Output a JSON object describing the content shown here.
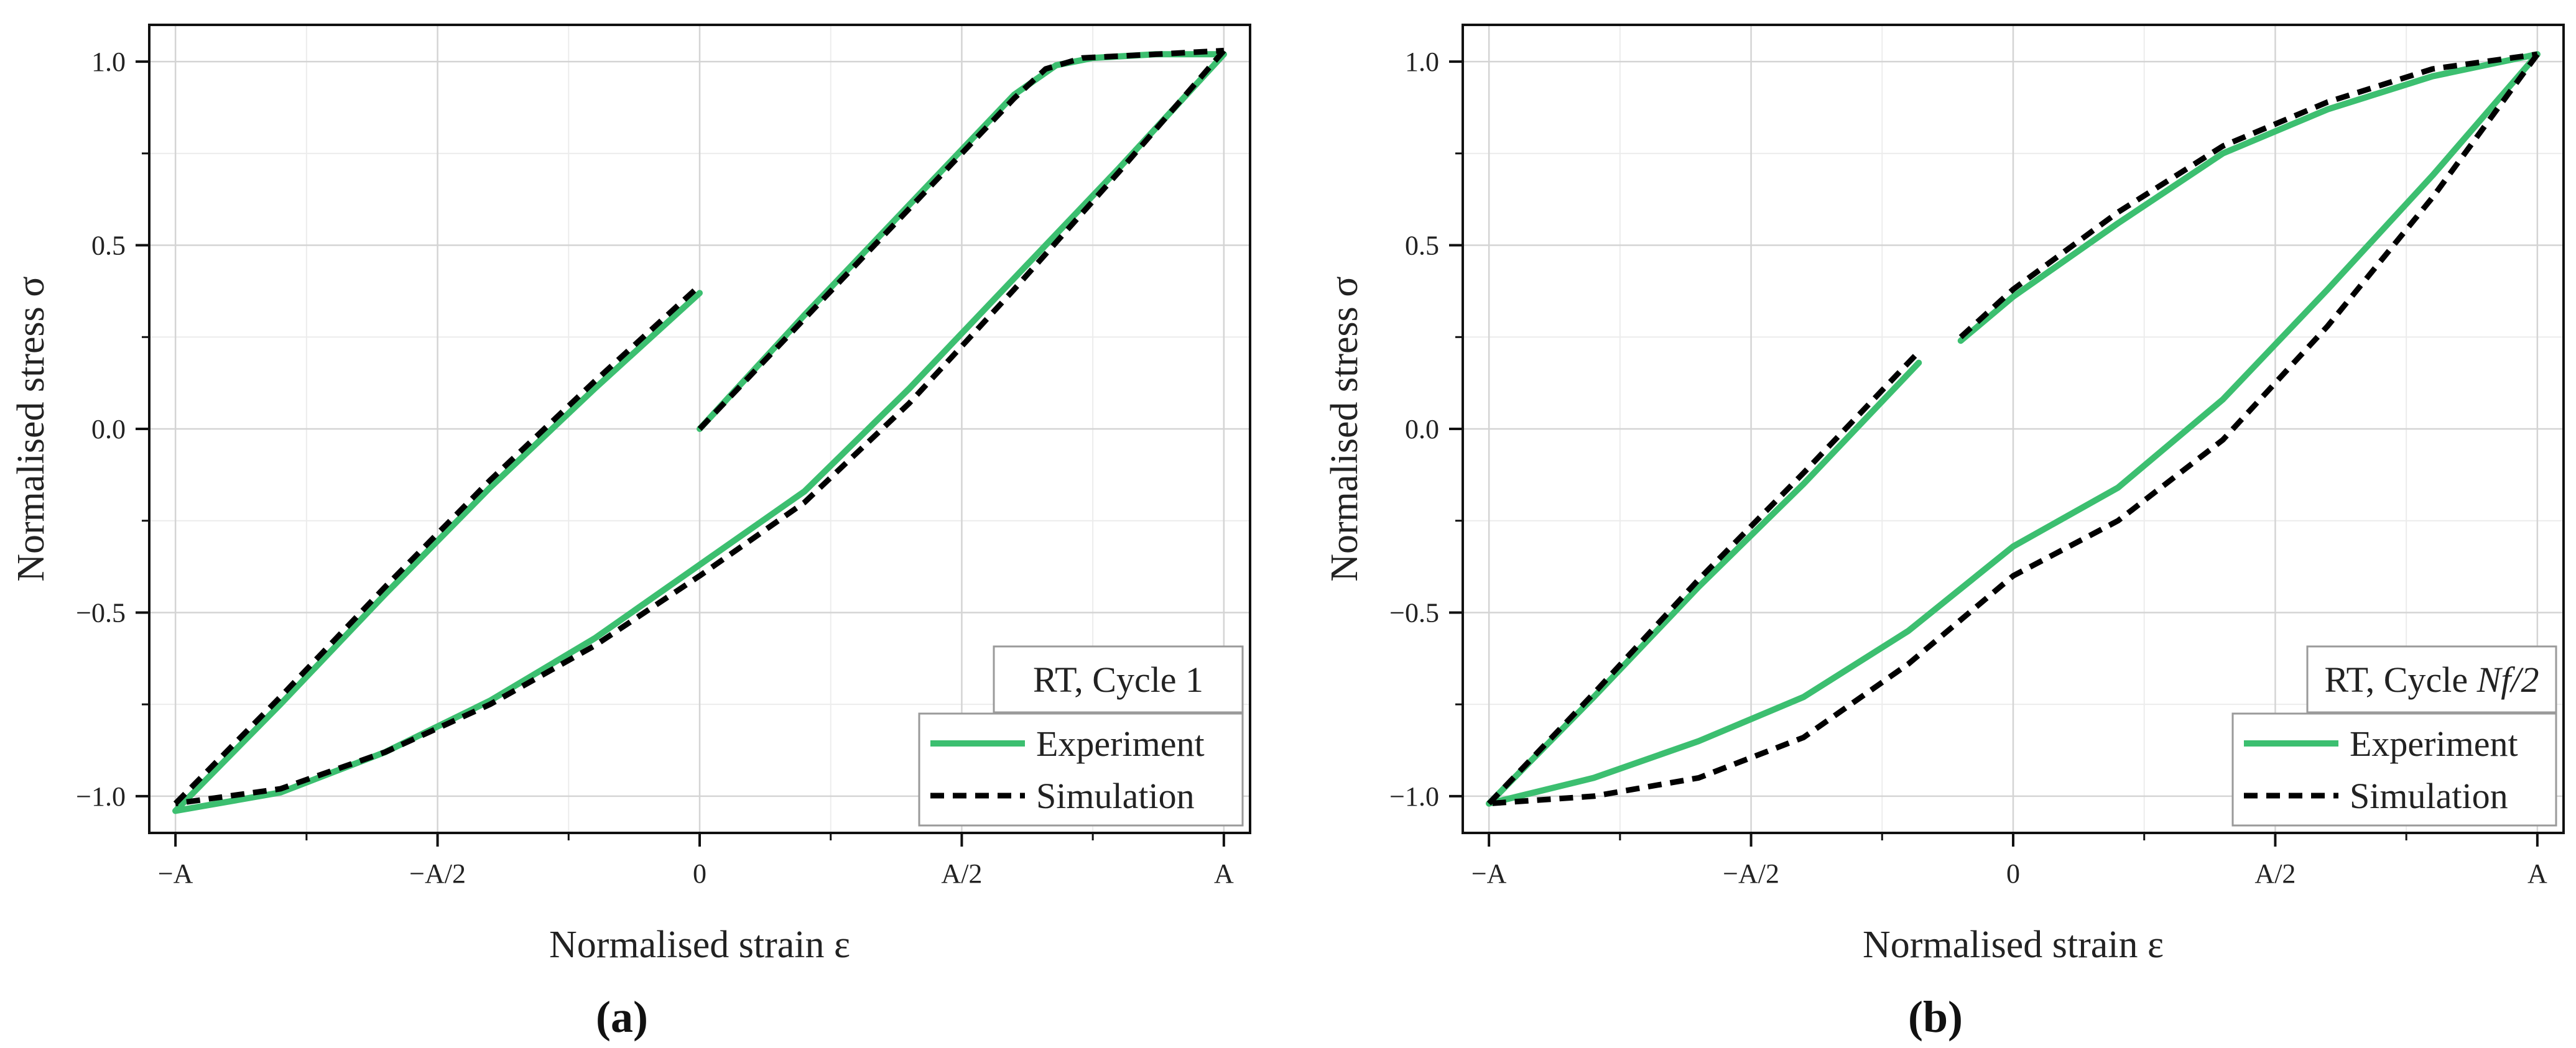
{
  "chart_data": [
    {
      "type": "line",
      "panel_label": "(a)",
      "tag": {
        "text": "RT, Cycle 1",
        "sub": ""
      },
      "xlabel": "Normalised strain ε",
      "ylabel": "Normalised stress σ",
      "xlim": [
        -1.05,
        1.05
      ],
      "ylim": [
        -1.1,
        1.1
      ],
      "x_ticks": [
        -1,
        -0.5,
        0,
        0.5,
        1
      ],
      "x_tick_labels": [
        "−A",
        "−A/2",
        "0",
        "A/2",
        "A"
      ],
      "y_ticks": [
        -1.0,
        -0.5,
        0.0,
        0.5,
        1.0
      ],
      "y_tick_labels": [
        "−1.0",
        "−0.5",
        "0.0",
        "0.5",
        "1.0"
      ],
      "grid": true,
      "legend_position": "bottom-right",
      "series": [
        {
          "name": "Experiment",
          "color": "#3cbf70",
          "style": "solid",
          "segments": [
            [
              [
                0,
                0
              ],
              [
                0.2,
                0.31
              ],
              [
                0.4,
                0.61
              ],
              [
                0.6,
                0.91
              ],
              [
                0.68,
                0.99
              ],
              [
                0.75,
                1.01
              ],
              [
                0.87,
                1.02
              ],
              [
                1.0,
                1.02
              ]
            ],
            [
              [
                1.0,
                1.02
              ],
              [
                0.8,
                0.71
              ],
              [
                0.6,
                0.41
              ],
              [
                0.4,
                0.11
              ],
              [
                0.2,
                -0.17
              ],
              [
                0.0,
                -0.37
              ],
              [
                -0.2,
                -0.57
              ],
              [
                -0.4,
                -0.74
              ],
              [
                -0.6,
                -0.88
              ],
              [
                -0.8,
                -0.99
              ],
              [
                -1.0,
                -1.04
              ]
            ],
            [
              [
                -1.0,
                -1.04
              ],
              [
                -0.8,
                -0.75
              ],
              [
                -0.6,
                -0.45
              ],
              [
                -0.4,
                -0.16
              ],
              [
                -0.2,
                0.11
              ],
              [
                0.0,
                0.37
              ]
            ]
          ]
        },
        {
          "name": "Simulation",
          "color": "#000000",
          "style": "dashed",
          "segments": [
            [
              [
                0,
                0
              ],
              [
                0.2,
                0.3
              ],
              [
                0.4,
                0.6
              ],
              [
                0.6,
                0.9
              ],
              [
                0.66,
                0.98
              ],
              [
                0.73,
                1.01
              ],
              [
                0.87,
                1.02
              ],
              [
                1.0,
                1.03
              ]
            ],
            [
              [
                1.0,
                1.03
              ],
              [
                0.8,
                0.7
              ],
              [
                0.6,
                0.38
              ],
              [
                0.4,
                0.07
              ],
              [
                0.2,
                -0.2
              ],
              [
                0.0,
                -0.4
              ],
              [
                -0.2,
                -0.59
              ],
              [
                -0.4,
                -0.75
              ],
              [
                -0.6,
                -0.88
              ],
              [
                -0.8,
                -0.98
              ],
              [
                -1.0,
                -1.02
              ]
            ],
            [
              [
                -1.0,
                -1.02
              ],
              [
                -0.8,
                -0.73
              ],
              [
                -0.6,
                -0.43
              ],
              [
                -0.4,
                -0.14
              ],
              [
                -0.2,
                0.13
              ],
              [
                0.0,
                0.39
              ]
            ]
          ]
        }
      ]
    },
    {
      "type": "line",
      "panel_label": "(b)",
      "tag": {
        "text": "RT, Cycle ",
        "sub": "Nf/2"
      },
      "xlabel": "Normalised strain ε",
      "ylabel": "Normalised stress σ",
      "xlim": [
        -1.05,
        1.05
      ],
      "ylim": [
        -1.1,
        1.1
      ],
      "x_ticks": [
        -1,
        -0.5,
        0,
        0.5,
        1
      ],
      "x_tick_labels": [
        "−A",
        "−A/2",
        "0",
        "A/2",
        "A"
      ],
      "y_ticks": [
        -1.0,
        -0.5,
        0.0,
        0.5,
        1.0
      ],
      "y_tick_labels": [
        "−1.0",
        "−0.5",
        "0.0",
        "0.5",
        "1.0"
      ],
      "grid": true,
      "legend_position": "bottom-right",
      "series": [
        {
          "name": "Experiment",
          "color": "#3cbf70",
          "style": "solid",
          "segments": [
            [
              [
                -0.1,
                0.24
              ],
              [
                0.0,
                0.36
              ],
              [
                0.2,
                0.56
              ],
              [
                0.4,
                0.75
              ],
              [
                0.6,
                0.87
              ],
              [
                0.8,
                0.96
              ],
              [
                1.0,
                1.02
              ]
            ],
            [
              [
                1.0,
                1.02
              ],
              [
                0.8,
                0.69
              ],
              [
                0.6,
                0.38
              ],
              [
                0.4,
                0.08
              ],
              [
                0.2,
                -0.16
              ],
              [
                0.0,
                -0.32
              ],
              [
                -0.2,
                -0.55
              ],
              [
                -0.4,
                -0.73
              ],
              [
                -0.6,
                -0.85
              ],
              [
                -0.8,
                -0.95
              ],
              [
                -1.0,
                -1.02
              ]
            ],
            [
              [
                -1.0,
                -1.02
              ],
              [
                -0.8,
                -0.73
              ],
              [
                -0.6,
                -0.43
              ],
              [
                -0.4,
                -0.15
              ],
              [
                -0.18,
                0.18
              ]
            ]
          ]
        },
        {
          "name": "Simulation",
          "color": "#000000",
          "style": "dashed",
          "segments": [
            [
              [
                -0.1,
                0.25
              ],
              [
                0.0,
                0.38
              ],
              [
                0.2,
                0.59
              ],
              [
                0.4,
                0.77
              ],
              [
                0.6,
                0.89
              ],
              [
                0.8,
                0.98
              ],
              [
                1.0,
                1.02
              ]
            ],
            [
              [
                1.0,
                1.02
              ],
              [
                0.8,
                0.63
              ],
              [
                0.6,
                0.28
              ],
              [
                0.4,
                -0.03
              ],
              [
                0.2,
                -0.25
              ],
              [
                0.0,
                -0.4
              ],
              [
                -0.2,
                -0.64
              ],
              [
                -0.4,
                -0.84
              ],
              [
                -0.6,
                -0.95
              ],
              [
                -0.8,
                -1.0
              ],
              [
                -1.0,
                -1.02
              ]
            ],
            [
              [
                -1.0,
                -1.02
              ],
              [
                -0.8,
                -0.72
              ],
              [
                -0.6,
                -0.41
              ],
              [
                -0.4,
                -0.12
              ],
              [
                -0.18,
                0.21
              ]
            ]
          ]
        }
      ]
    }
  ]
}
